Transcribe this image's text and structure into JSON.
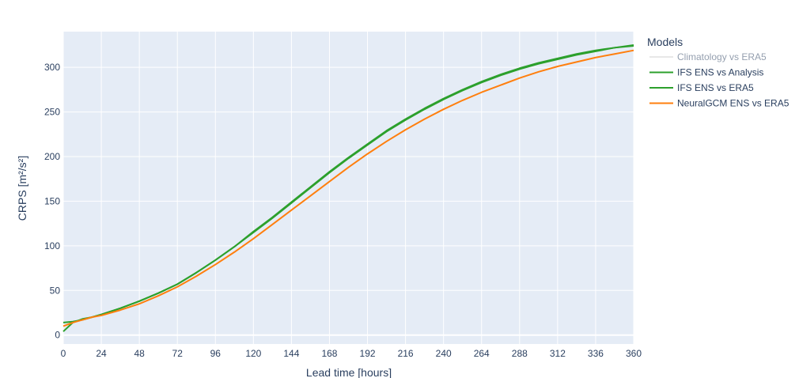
{
  "chart_data": {
    "type": "line",
    "xlabel": "Lead time [hours]",
    "ylabel": "CRPS [m²/s²]",
    "xlim": [
      0,
      360
    ],
    "ylim": [
      -10,
      340
    ],
    "xticks": [
      0,
      24,
      48,
      72,
      96,
      120,
      144,
      168,
      192,
      216,
      240,
      264,
      288,
      312,
      336,
      360
    ],
    "yticks": [
      0,
      50,
      100,
      150,
      200,
      250,
      300
    ],
    "grid": true,
    "legend": {
      "title": "Models",
      "position": "right"
    },
    "series": [
      {
        "name": "Climatology vs ERA5",
        "color": "#d3d3d3",
        "hidden": true,
        "x": [],
        "y": []
      },
      {
        "name": "IFS ENS vs Analysis",
        "color": "#2ca02c",
        "x": [
          0,
          6,
          12,
          18,
          24,
          36,
          48,
          60,
          72,
          84,
          96,
          108,
          120,
          132,
          144,
          156,
          168,
          180,
          192,
          204,
          216,
          228,
          240,
          252,
          264,
          276,
          288,
          300,
          312,
          324,
          336,
          348,
          360
        ],
        "y": [
          4,
          14,
          18,
          20,
          23,
          30,
          38,
          47,
          57,
          70,
          84,
          99,
          116,
          132,
          149,
          166,
          183,
          199,
          214,
          229,
          242,
          254,
          265,
          275,
          284,
          292,
          299,
          305,
          310,
          315,
          319,
          322,
          325
        ]
      },
      {
        "name": "IFS ENS vs ERA5",
        "color": "#2ca02c",
        "x": [
          0,
          6,
          12,
          18,
          24,
          36,
          48,
          60,
          72,
          84,
          96,
          108,
          120,
          132,
          144,
          156,
          168,
          180,
          192,
          204,
          216,
          228,
          240,
          252,
          264,
          276,
          288,
          300,
          312,
          324,
          336,
          348,
          360
        ],
        "y": [
          14,
          15,
          17,
          20,
          23,
          30,
          38,
          47,
          57,
          70,
          84,
          99,
          115,
          131,
          148,
          165,
          182,
          198,
          213,
          228,
          241,
          253,
          264,
          274,
          283,
          291,
          298,
          304,
          309,
          314,
          318,
          322,
          324
        ]
      },
      {
        "name": "NeuralGCM ENS vs ERA5",
        "color": "#ff7f0e",
        "x": [
          0,
          6,
          12,
          18,
          24,
          36,
          48,
          60,
          72,
          84,
          96,
          108,
          120,
          132,
          144,
          156,
          168,
          180,
          192,
          204,
          216,
          228,
          240,
          252,
          264,
          276,
          288,
          300,
          312,
          324,
          336,
          348,
          360
        ],
        "y": [
          10,
          14,
          17,
          20,
          22,
          28,
          35,
          44,
          54,
          66,
          79,
          93,
          108,
          124,
          140,
          156,
          172,
          188,
          203,
          217,
          230,
          242,
          253,
          263,
          272,
          280,
          288,
          295,
          301,
          306,
          311,
          315,
          319
        ]
      }
    ]
  }
}
